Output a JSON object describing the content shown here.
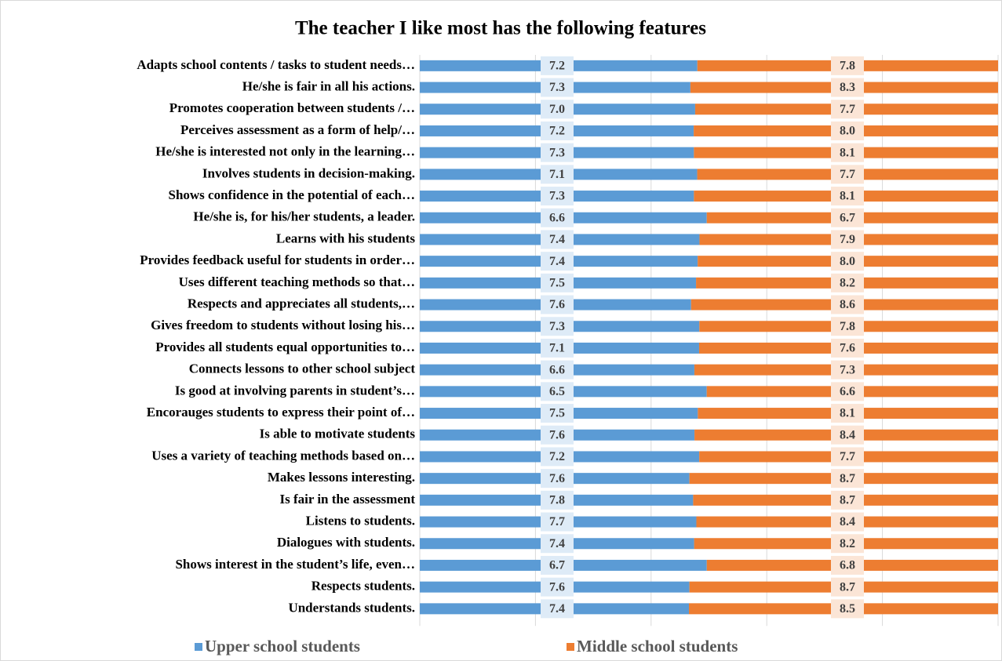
{
  "chart_data": {
    "type": "bar",
    "orientation": "horizontal",
    "stack": "percent",
    "title": "The teacher I like most has the following features",
    "categories": [
      "Adapts school contents / tasks to student needs…",
      "He/she is fair in all his actions.",
      "Promotes cooperation between students /…",
      "Perceives assessment as a form of help/…",
      "He/she is interested not only in the learning…",
      "Involves students in decision-making.",
      "Shows confidence in the potential of each…",
      "He/she is, for his/her students, a leader.",
      "Learns with his students",
      "Provides feedback useful for students in order…",
      "Uses different teaching methods so that…",
      "Respects and appreciates all students,…",
      "Gives freedom to students without losing his…",
      "Provides all students equal opportunities to…",
      "Connects lessons to other school subject",
      "Is good at involving parents in student’s…",
      "Encorauges students to express their point of…",
      "Is able to motivate  students",
      "Uses a variety of teaching methods based on…",
      "Makes lessons interesting.",
      "Is fair in the assessment",
      "Listens to students.",
      "Dialogues with students.",
      "Shows interest in the student’s life, even…",
      "Respects students.",
      "Understands students."
    ],
    "series": [
      {
        "name": "Upper school students",
        "color": "#5b9bd5",
        "values": [
          7.2,
          7.3,
          7.0,
          7.2,
          7.3,
          7.1,
          7.3,
          6.6,
          7.4,
          7.4,
          7.5,
          7.6,
          7.3,
          7.1,
          6.6,
          6.5,
          7.5,
          7.6,
          7.2,
          7.6,
          7.8,
          7.7,
          7.4,
          6.7,
          7.6,
          7.4
        ],
        "value_labels": [
          "7.2",
          "7.3",
          "7.0",
          "7.2",
          "7.3",
          "7.1",
          "7.3",
          "6.6",
          "7.4",
          "7.4",
          "7.5",
          "7.6",
          "7.3",
          "7.1",
          "6.6",
          "6.5",
          "7.5",
          "7.6",
          "7.2",
          "7.6",
          "7.8",
          "7.7",
          "7.4",
          "6.7",
          "7.6",
          "7.4"
        ]
      },
      {
        "name": "Middle school students",
        "color": "#ed7d31",
        "values": [
          7.8,
          8.3,
          7.7,
          8.0,
          8.1,
          7.7,
          8.1,
          6.7,
          7.9,
          8.0,
          8.2,
          8.6,
          7.8,
          7.6,
          7.3,
          6.6,
          8.1,
          8.4,
          7.7,
          8.7,
          8.7,
          8.4,
          8.2,
          6.8,
          8.7,
          8.5
        ],
        "value_labels": [
          "7.8",
          "8.3",
          "7.7",
          "8.0",
          "8.1",
          "7.7",
          "8.1",
          "6.7",
          "7.9",
          "8.0",
          "8.2",
          "8.6",
          "7.8",
          "7.6",
          "7.3",
          "6.6",
          "8.1",
          "8.4",
          "7.7",
          "8.7",
          "8.7",
          "8.4",
          "8.2",
          "6.8",
          "8.7",
          "8.5"
        ]
      }
    ],
    "grid": true,
    "legend": "bottom"
  }
}
